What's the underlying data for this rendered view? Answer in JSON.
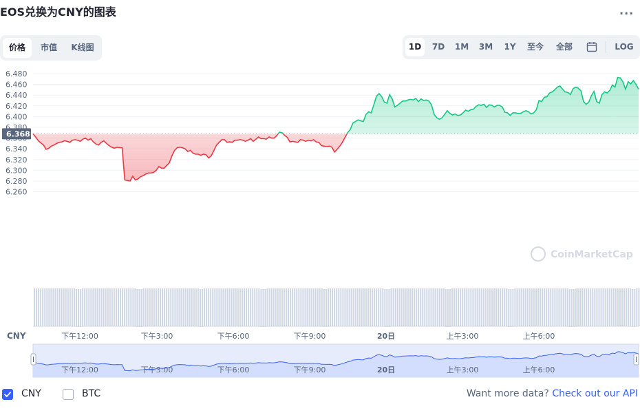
{
  "header": {
    "title": "EOS兑换为CNY的图表",
    "more_label": "..."
  },
  "view_tabs": [
    {
      "label": "价格",
      "active": true
    },
    {
      "label": "市值",
      "active": false
    },
    {
      "label": "K线图",
      "active": false
    }
  ],
  "range_tabs": [
    {
      "label": "1D",
      "active": true
    },
    {
      "label": "7D",
      "active": false
    },
    {
      "label": "1M",
      "active": false
    },
    {
      "label": "3M",
      "active": false
    },
    {
      "label": "1Y",
      "active": false
    },
    {
      "label": "至今",
      "active": false
    },
    {
      "label": "全部",
      "active": false
    }
  ],
  "log_label": "LOG",
  "calendar_icon": "calendar-icon",
  "chart_data": {
    "type": "area",
    "y_ticks": [
      "6.480",
      "6.460",
      "6.440",
      "6.420",
      "6.400",
      "6.380",
      "6.360",
      "6.340",
      "6.320",
      "6.300",
      "6.280",
      "6.260"
    ],
    "ylim": [
      6.25,
      6.485
    ],
    "x_ticks": [
      "下午12:00",
      "下午3:00",
      "下午6:00",
      "下午9:00",
      "20日",
      "上午3:00",
      "上午6:00"
    ],
    "xlabel": "CNY",
    "reference_value": 6.368,
    "reference_label": "6.368",
    "up_color": "#16c784",
    "down_color": "#ea3943",
    "watermark": "CoinMarketCap",
    "series": [
      {
        "values": [
          6.368,
          6.362,
          6.355,
          6.351,
          6.347,
          6.339,
          6.341,
          6.345,
          6.347,
          6.35,
          6.352,
          6.353,
          6.355,
          6.354,
          6.352,
          6.356,
          6.357,
          6.356,
          6.354,
          6.358,
          6.36,
          6.356,
          6.359,
          6.353,
          6.349,
          6.347,
          6.352,
          6.355,
          6.35,
          6.346,
          6.343,
          6.341,
          6.343,
          6.342,
          6.342,
          6.282,
          6.281,
          6.28,
          6.289,
          6.282,
          6.284,
          6.288,
          6.29,
          6.293,
          6.295,
          6.295,
          6.296,
          6.3,
          6.307,
          6.304,
          6.304,
          6.309,
          6.314,
          6.327,
          6.337,
          6.342,
          6.343,
          6.342,
          6.34,
          6.335,
          6.337,
          6.332,
          6.33,
          6.33,
          6.328,
          6.33,
          6.329,
          6.323,
          6.327,
          6.337,
          6.347,
          6.352,
          6.357,
          6.357,
          6.352,
          6.353,
          6.352,
          6.356,
          6.356,
          6.357,
          6.356,
          6.354,
          6.356,
          6.359,
          6.354,
          6.358,
          6.362,
          6.359,
          6.359,
          6.358,
          6.362,
          6.36,
          6.36,
          6.365,
          6.371,
          6.37,
          6.365,
          6.361,
          6.353,
          6.354,
          6.353,
          6.352,
          6.357,
          6.356,
          6.354,
          6.356,
          6.355,
          6.357,
          6.353,
          6.352,
          6.346,
          6.345,
          6.344,
          6.345,
          6.343,
          6.334,
          6.339,
          6.345,
          6.352,
          6.361,
          6.37,
          6.376,
          6.388,
          6.391,
          6.394,
          6.392,
          6.391,
          6.404,
          6.409,
          6.407,
          6.422,
          6.438,
          6.443,
          6.437,
          6.427,
          6.425,
          6.441,
          6.433,
          6.418,
          6.421,
          6.425,
          6.429,
          6.429,
          6.431,
          6.432,
          6.431,
          6.434,
          6.428,
          6.433,
          6.43,
          6.431,
          6.429,
          6.422,
          6.404,
          6.398,
          6.395,
          6.398,
          6.404,
          6.411,
          6.406,
          6.403,
          6.405,
          6.402,
          6.403,
          6.407,
          6.412,
          6.41,
          6.413,
          6.414,
          6.419,
          6.422,
          6.421,
          6.423,
          6.417,
          6.422,
          6.421,
          6.418,
          6.421,
          6.421,
          6.418,
          6.408,
          6.407,
          6.402,
          6.407,
          6.407,
          6.406,
          6.406,
          6.409,
          6.411,
          6.409,
          6.405,
          6.407,
          6.413,
          6.43,
          6.428,
          6.436,
          6.437,
          6.444,
          6.446,
          6.45,
          6.455,
          6.457,
          6.451,
          6.446,
          6.445,
          6.441,
          6.452,
          6.455,
          6.453,
          6.448,
          6.428,
          6.423,
          6.427,
          6.439,
          6.447,
          6.428,
          6.425,
          6.441,
          6.446,
          6.444,
          6.449,
          6.459,
          6.455,
          6.473,
          6.472,
          6.465,
          6.451,
          6.465,
          6.461,
          6.467,
          6.46,
          6.451
        ]
      }
    ],
    "navigator_x_ticks": [
      "下午12:00",
      "下午3:00",
      "下午6:00",
      "下午9:00",
      "20日",
      "上午3:00",
      "上午6:00"
    ]
  },
  "footer": {
    "checkboxes": [
      {
        "label": "CNY",
        "checked": true
      },
      {
        "label": "BTC",
        "checked": false
      }
    ],
    "more_data_text": "Want more data?",
    "api_link_text": "Check out our API"
  }
}
